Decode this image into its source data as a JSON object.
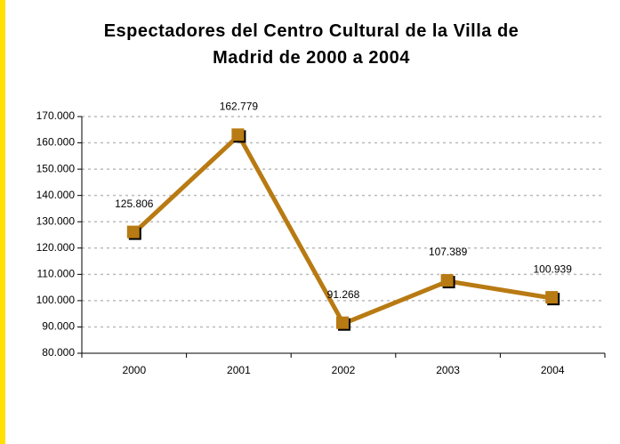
{
  "chart_data": {
    "type": "line",
    "title": "Espectadores del Centro Cultural de la Villa de Madrid de 2000 a 2004",
    "categories": [
      "2000",
      "2001",
      "2002",
      "2003",
      "2004"
    ],
    "series": [
      {
        "color": "#b87a12",
        "values": [
          125806,
          162779,
          91268,
          107389,
          100939
        ],
        "value_labels": [
          "125.806",
          "162.779",
          "91.268",
          "107.389",
          "100.939"
        ]
      }
    ],
    "ylim": [
      80000,
      170000
    ],
    "yticks": [
      {
        "value": 80000,
        "label": "80.000"
      },
      {
        "value": 90000,
        "label": "90.000"
      },
      {
        "value": 100000,
        "label": "100.000"
      },
      {
        "value": 110000,
        "label": "110.000"
      },
      {
        "value": 120000,
        "label": "120.000"
      },
      {
        "value": 130000,
        "label": "130.000"
      },
      {
        "value": 140000,
        "label": "140.000"
      },
      {
        "value": 150000,
        "label": "150.000"
      },
      {
        "value": 160000,
        "label": "160.000"
      },
      {
        "value": 170000,
        "label": "170.000"
      }
    ],
    "grid": true
  }
}
